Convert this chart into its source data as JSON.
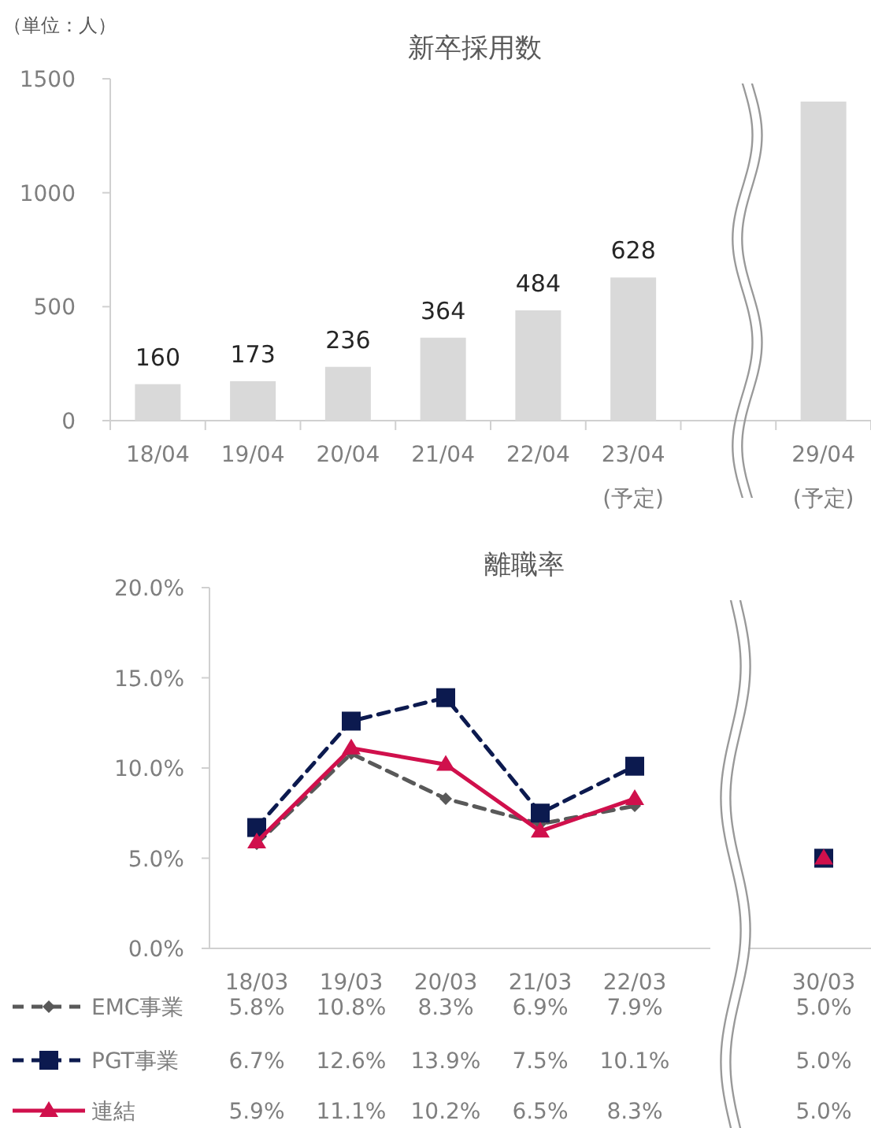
{
  "chart_data": [
    {
      "type": "bar",
      "title": "新卒採用数",
      "annotations": [
        "（単位：人）"
      ],
      "categories": [
        "18/04",
        "19/04",
        "20/04",
        "21/04",
        "22/04",
        "23/04 (予定)",
        null,
        "29/04 (予定)"
      ],
      "values": [
        160,
        173,
        236,
        364,
        484,
        628,
        null,
        1400
      ],
      "value_labels": [
        "160",
        "173",
        "236",
        "364",
        "484",
        "628",
        null,
        null
      ],
      "color": "#d9d9d9",
      "ylim": [
        0,
        1500
      ],
      "yticks": [
        0,
        500,
        1000,
        1500
      ],
      "grid": false
    },
    {
      "type": "line",
      "title": "離職率",
      "categories": [
        "18/03",
        "19/03",
        "20/03",
        "21/03",
        "22/03",
        null,
        "30/03"
      ],
      "series": [
        {
          "name": "EMC事業",
          "color": "#595959",
          "marker": "diamond",
          "line_style": "dashed",
          "values": [
            5.8,
            10.8,
            8.3,
            6.9,
            7.9,
            null,
            null
          ],
          "value_labels": [
            "5.8%",
            "10.8%",
            "8.3%",
            "6.9%",
            "7.9%",
            null,
            "5.0%"
          ]
        },
        {
          "name": "PGT事業",
          "color": "#0c1a4f",
          "marker": "square",
          "line_style": "dashed",
          "values": [
            6.7,
            12.6,
            13.9,
            7.5,
            10.1,
            null,
            5.0
          ],
          "value_labels": [
            "6.7%",
            "12.6%",
            "13.9%",
            "7.5%",
            "10.1%",
            null,
            "5.0%"
          ]
        },
        {
          "name": "連結",
          "color": "#d0104c",
          "marker": "triangle",
          "line_style": "solid",
          "values": [
            5.9,
            11.1,
            10.2,
            6.5,
            8.3,
            null,
            5.0
          ],
          "value_labels": [
            "5.9%",
            "11.1%",
            "10.2%",
            "6.5%",
            "8.3%",
            null,
            "5.0%"
          ]
        }
      ],
      "ylim": [
        0,
        20
      ],
      "yticks": [
        {
          "value": 0,
          "label": "0.0%"
        },
        {
          "value": 5,
          "label": "5.0%"
        },
        {
          "value": 10,
          "label": "10.0%"
        },
        {
          "value": 15,
          "label": "15.0%"
        },
        {
          "value": 20,
          "label": "20.0%"
        }
      ],
      "grid": false,
      "legend": "bottom"
    }
  ]
}
